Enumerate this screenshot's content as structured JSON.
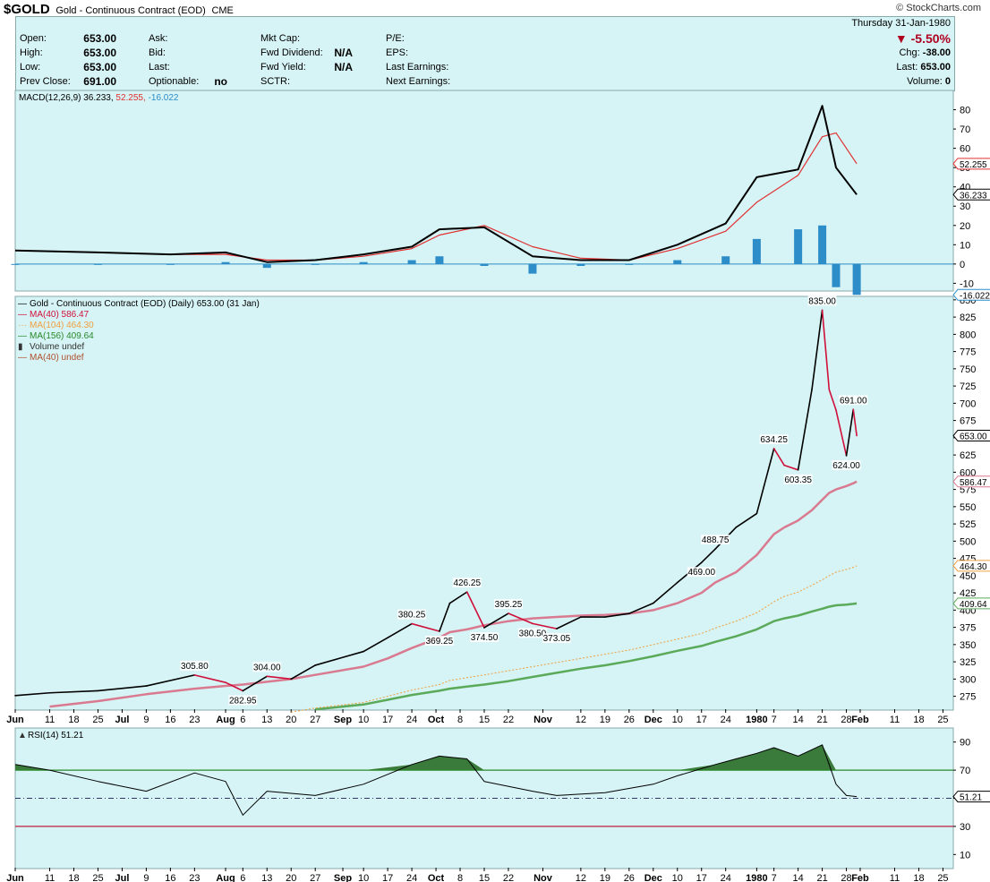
{
  "header": {
    "symbol": "$GOLD",
    "name": "Gold - Continuous Contract (EOD)",
    "exchange": "CME",
    "brand": "© StockCharts.com"
  },
  "quote": {
    "date": "Thursday  31-Jan-1980",
    "open_label": "Open:",
    "open": "653.00",
    "high_label": "High:",
    "high": "653.00",
    "low_label": "Low:",
    "low": "653.00",
    "prev_label": "Prev Close:",
    "prev": "691.00",
    "ask_label": "Ask:",
    "bid_label": "Bid:",
    "last_label": "Last:",
    "optionable_label": "Optionable:",
    "optionable": "no",
    "mktcap_label": "Mkt Cap:",
    "fwddiv_label": "Fwd Dividend:",
    "fwddiv": "N/A",
    "fwdyield_label": "Fwd Yield:",
    "fwdyield": "N/A",
    "sctr_label": "SCTR:",
    "pe_label": "P/E:",
    "eps_label": "EPS:",
    "lastearn_label": "Last Earnings:",
    "nextearn_label": "Next Earnings:",
    "chg_pct": "▼ -5.50%",
    "chg_label": "Chg:",
    "chg": "-38.00",
    "last_price_label": "Last:",
    "last_price": "653.00",
    "volume_label": "Volume:",
    "volume": "0"
  },
  "colors": {
    "panel_bg": "#d6f3f5",
    "price_up": "#000000",
    "price_down": "#d0103a",
    "ma40": "#d97a90",
    "ma104": "#f0a040",
    "ma156": "#5aaa5a",
    "macd": "#000000",
    "signal": "#e03030",
    "histogram": "#2d8dc8",
    "rsi_fill": "#3a7a3a",
    "rsi_overbought": "#2a8a2a",
    "rsi_oversold": "#c02040"
  },
  "chart_data": [
    {
      "type": "line",
      "panel": "macd",
      "legend": {
        "prefix": "MACD(12,26,9)",
        "macd_value": "36.233,",
        "signal_value": "52.255,",
        "hist_value": "-16.022"
      },
      "ylim": [
        -14,
        90
      ],
      "yticks": [
        80,
        70,
        60,
        50,
        40,
        30,
        20,
        10,
        0,
        -10
      ],
      "last_value_tags": [
        "52.255",
        "36.233",
        "-16.022"
      ],
      "x": [
        "1979-06-01",
        "1979-06-25",
        "1979-07-16",
        "1979-08-01",
        "1979-08-13",
        "1979-08-27",
        "1979-09-10",
        "1979-09-24",
        "1979-10-02",
        "1979-10-15",
        "1979-10-29",
        "1979-11-12",
        "1979-11-26",
        "1979-12-10",
        "1979-12-24",
        "1980-01-02",
        "1980-01-14",
        "1980-01-21",
        "1980-01-25",
        "1980-01-31"
      ],
      "series": [
        {
          "key": "macd",
          "values": [
            7,
            6,
            5,
            6,
            1,
            2,
            5,
            9,
            18,
            19,
            4,
            2,
            2,
            10,
            21,
            45,
            49,
            82,
            50,
            36
          ]
        },
        {
          "key": "signal",
          "values": [
            7,
            6,
            5,
            5,
            2,
            2,
            4,
            8,
            15,
            20,
            9,
            3,
            2,
            8,
            17,
            32,
            46,
            66,
            68,
            52
          ]
        },
        {
          "key": "histogram",
          "values": [
            0,
            0,
            0,
            1,
            -2,
            0,
            1,
            2,
            4,
            -1,
            -5,
            -1,
            0,
            2,
            4,
            13,
            18,
            20,
            -12,
            -16
          ]
        }
      ]
    },
    {
      "type": "line",
      "panel": "price",
      "legend": {
        "price": "Gold - Continuous Contract (EOD) (Daily) 653.00 (31 Jan)",
        "ma40": "MA(40) 586.47",
        "ma104": "MA(104) 464.30",
        "ma156": "MA(156) 409.64",
        "vol": "Volume undef",
        "ma40b": "MA(40) undef"
      },
      "ylim": [
        255,
        855
      ],
      "yticks": [
        850,
        825,
        800,
        775,
        750,
        725,
        700,
        675,
        650,
        625,
        600,
        575,
        550,
        525,
        500,
        475,
        450,
        425,
        400,
        375,
        350,
        325,
        300,
        275
      ],
      "last_value_tags": [
        "653.00",
        "586.47",
        "464.30",
        "409.64"
      ],
      "x": [
        "1979-06-01",
        "1979-06-11",
        "1979-06-25",
        "1979-07-09",
        "1979-07-23",
        "1979-08-01",
        "1979-08-06",
        "1979-08-13",
        "1979-08-20",
        "1979-08-27",
        "1979-09-10",
        "1979-09-17",
        "1979-09-24",
        "1979-10-02",
        "1979-10-05",
        "1979-10-10",
        "1979-10-15",
        "1979-10-22",
        "1979-10-29",
        "1979-11-05",
        "1979-11-12",
        "1979-11-19",
        "1979-11-26",
        "1979-12-03",
        "1979-12-10",
        "1979-12-17",
        "1979-12-21",
        "1979-12-27",
        "1980-01-02",
        "1980-01-07",
        "1980-01-10",
        "1980-01-14",
        "1980-01-18",
        "1980-01-21",
        "1980-01-23",
        "1980-01-25",
        "1980-01-28",
        "1980-01-30",
        "1980-01-31"
      ],
      "series": [
        {
          "key": "price",
          "values": [
            276,
            280,
            283,
            290,
            305.8,
            295,
            282.95,
            304,
            300,
            320,
            340,
            360,
            380.25,
            369.25,
            410,
            426.25,
            374.5,
            395.25,
            380.5,
            373.05,
            390,
            390,
            395,
            410,
            440,
            469,
            488.75,
            520,
            540,
            634.25,
            610,
            603.35,
            720,
            835,
            720,
            690,
            624,
            691,
            653
          ]
        },
        {
          "key": "ma40",
          "values": [
            null,
            260,
            268,
            278,
            286,
            290,
            292,
            296,
            300,
            306,
            318,
            330,
            345,
            360,
            368,
            372,
            378,
            384,
            388,
            390,
            392,
            393,
            395,
            400,
            410,
            425,
            440,
            455,
            480,
            510,
            520,
            530,
            545,
            560,
            570,
            575,
            580,
            584,
            586.47
          ]
        },
        {
          "key": "ma104",
          "values": [
            null,
            null,
            null,
            null,
            null,
            null,
            null,
            null,
            252,
            258,
            266,
            275,
            284,
            292,
            298,
            302,
            306,
            312,
            318,
            324,
            330,
            336,
            342,
            350,
            358,
            366,
            374,
            384,
            396,
            412,
            420,
            426,
            436,
            444,
            450,
            455,
            459,
            462,
            464.3
          ]
        },
        {
          "key": "ma156",
          "values": [
            null,
            null,
            null,
            null,
            null,
            null,
            null,
            null,
            null,
            256,
            263,
            270,
            277,
            283,
            286,
            289,
            292,
            297,
            303,
            309,
            315,
            320,
            326,
            333,
            341,
            348,
            354,
            362,
            372,
            384,
            388,
            392,
            398,
            402,
            405,
            407,
            408,
            409,
            409.64
          ]
        }
      ],
      "annotations": [
        {
          "x": "1979-07-23",
          "y": 305.8,
          "text": "305.80",
          "pos": "above"
        },
        {
          "x": "1979-08-06",
          "y": 282.95,
          "text": "282.95",
          "pos": "below"
        },
        {
          "x": "1979-08-13",
          "y": 304,
          "text": "304.00",
          "pos": "above"
        },
        {
          "x": "1979-09-24",
          "y": 380.25,
          "text": "380.25",
          "pos": "above"
        },
        {
          "x": "1979-10-02",
          "y": 369.25,
          "text": "369.25",
          "pos": "below"
        },
        {
          "x": "1979-10-10",
          "y": 426.25,
          "text": "426.25",
          "pos": "above"
        },
        {
          "x": "1979-10-15",
          "y": 374.5,
          "text": "374.50",
          "pos": "below"
        },
        {
          "x": "1979-10-22",
          "y": 395.25,
          "text": "395.25",
          "pos": "above"
        },
        {
          "x": "1979-10-29",
          "y": 380.5,
          "text": "380.50",
          "pos": "below"
        },
        {
          "x": "1979-11-05",
          "y": 373.05,
          "text": "373.05",
          "pos": "below"
        },
        {
          "x": "1979-12-21",
          "y": 488.75,
          "text": "488.75",
          "pos": "above"
        },
        {
          "x": "1979-12-17",
          "y": 469,
          "text": "469.00",
          "pos": "below"
        },
        {
          "x": "1980-01-07",
          "y": 634.25,
          "text": "634.25",
          "pos": "above"
        },
        {
          "x": "1980-01-14",
          "y": 603.35,
          "text": "603.35",
          "pos": "below"
        },
        {
          "x": "1980-01-21",
          "y": 835,
          "text": "835.00",
          "pos": "above"
        },
        {
          "x": "1980-01-30",
          "y": 691,
          "text": "691.00",
          "pos": "above"
        },
        {
          "x": "1980-01-28",
          "y": 624,
          "text": "624.00",
          "pos": "below"
        }
      ]
    },
    {
      "type": "area",
      "panel": "rsi",
      "legend": {
        "rsi": "RSI(14) 51.21"
      },
      "ylim": [
        0,
        100
      ],
      "yticks": [
        90,
        70,
        50,
        30,
        10
      ],
      "overbought": 70,
      "oversold": 30,
      "last_value_tags": [
        "51.21"
      ],
      "x": [
        "1979-06-01",
        "1979-06-11",
        "1979-06-25",
        "1979-07-09",
        "1979-07-23",
        "1979-08-01",
        "1979-08-06",
        "1979-08-13",
        "1979-08-27",
        "1979-09-10",
        "1979-09-24",
        "1979-10-02",
        "1979-10-10",
        "1979-10-15",
        "1979-10-29",
        "1979-11-05",
        "1979-11-19",
        "1979-12-03",
        "1979-12-10",
        "1979-12-21",
        "1979-12-27",
        "1980-01-02",
        "1980-01-07",
        "1980-01-14",
        "1980-01-21",
        "1980-01-25",
        "1980-01-28",
        "1980-01-31"
      ],
      "series": [
        {
          "key": "rsi",
          "values": [
            74,
            70,
            62,
            55,
            68,
            62,
            38,
            55,
            52,
            60,
            74,
            80,
            78,
            62,
            55,
            52,
            54,
            60,
            66,
            74,
            78,
            82,
            86,
            80,
            88,
            60,
            52,
            51.21
          ]
        }
      ]
    }
  ],
  "xaxis": {
    "ticks": [
      {
        "d": "1979-06-01",
        "t": "Jun",
        "b": true
      },
      {
        "d": "1979-06-11",
        "t": "11"
      },
      {
        "d": "1979-06-18",
        "t": "18"
      },
      {
        "d": "1979-06-25",
        "t": "25"
      },
      {
        "d": "1979-07-02",
        "t": "Jul",
        "b": true
      },
      {
        "d": "1979-07-09",
        "t": "9"
      },
      {
        "d": "1979-07-16",
        "t": "16"
      },
      {
        "d": "1979-07-23",
        "t": "23"
      },
      {
        "d": "1979-08-01",
        "t": "Aug",
        "b": true
      },
      {
        "d": "1979-08-06",
        "t": "6"
      },
      {
        "d": "1979-08-13",
        "t": "13"
      },
      {
        "d": "1979-08-20",
        "t": "20"
      },
      {
        "d": "1979-08-27",
        "t": "27"
      },
      {
        "d": "1979-09-04",
        "t": "Sep",
        "b": true
      },
      {
        "d": "1979-09-10",
        "t": "10"
      },
      {
        "d": "1979-09-17",
        "t": "17"
      },
      {
        "d": "1979-09-24",
        "t": "24"
      },
      {
        "d": "1979-10-01",
        "t": "Oct",
        "b": true
      },
      {
        "d": "1979-10-08",
        "t": "8"
      },
      {
        "d": "1979-10-15",
        "t": "15"
      },
      {
        "d": "1979-10-22",
        "t": "22"
      },
      {
        "d": "1979-11-01",
        "t": "Nov",
        "b": true
      },
      {
        "d": "1979-11-12",
        "t": "12"
      },
      {
        "d": "1979-11-19",
        "t": "19"
      },
      {
        "d": "1979-11-26",
        "t": "26"
      },
      {
        "d": "1979-12-03",
        "t": "Dec",
        "b": true
      },
      {
        "d": "1979-12-10",
        "t": "10"
      },
      {
        "d": "1979-12-17",
        "t": "17"
      },
      {
        "d": "1979-12-24",
        "t": "24"
      },
      {
        "d": "1980-01-02",
        "t": "1980",
        "b": true
      },
      {
        "d": "1980-01-07",
        "t": "7"
      },
      {
        "d": "1980-01-14",
        "t": "14"
      },
      {
        "d": "1980-01-21",
        "t": "21"
      },
      {
        "d": "1980-01-28",
        "t": "28"
      },
      {
        "d": "1980-02-01",
        "t": "Feb",
        "b": true
      },
      {
        "d": "1980-02-11",
        "t": "11"
      },
      {
        "d": "1980-02-18",
        "t": "18"
      },
      {
        "d": "1980-02-25",
        "t": "25"
      }
    ]
  }
}
